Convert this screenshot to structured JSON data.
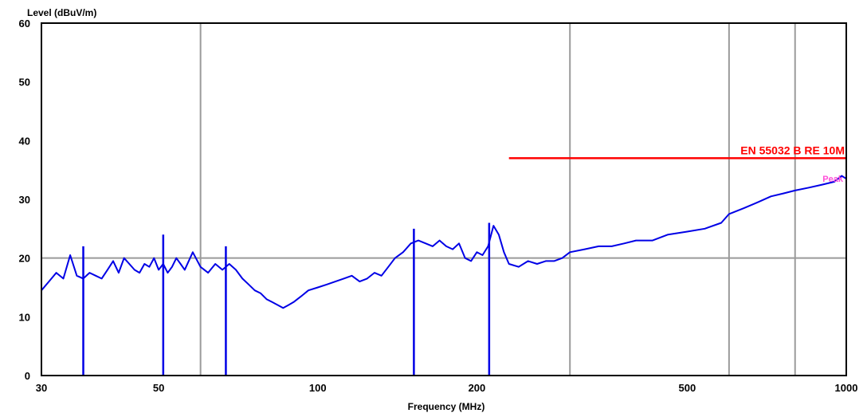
{
  "chart_data": {
    "type": "line",
    "title": "",
    "ylabel": "Level (dBuV/m)",
    "xlabel": "Frequency (MHz)",
    "xscale": "log",
    "xlim": [
      30,
      1000
    ],
    "ylim": [
      0,
      60
    ],
    "x_ticks": [
      30,
      50,
      100,
      200,
      500,
      1000
    ],
    "x_tick_labels": [
      "30",
      "50",
      "100",
      "200",
      "500",
      "1000"
    ],
    "x_gridlines": [
      60,
      300,
      600,
      800
    ],
    "y_ticks": [
      0,
      10,
      20,
      30,
      40,
      50,
      60
    ],
    "y_tick_labels": [
      "0",
      "10",
      "20",
      "30",
      "40",
      "50",
      "60"
    ],
    "y_gridlines": [
      20
    ],
    "grid": true,
    "colors": {
      "trace": "#0000e6",
      "limit": "#ff0000",
      "grid": "#9a9a9a",
      "marker_label": "#ff4fd8"
    },
    "limit_line": {
      "name": "EN 55032 B RE 10M",
      "x": [
        230,
        1000
      ],
      "y": [
        37,
        37
      ]
    },
    "marker_label": "Peak",
    "series": [
      {
        "x": [
          30,
          31,
          32,
          33,
          34,
          35,
          36,
          37,
          38,
          39,
          40,
          41,
          42,
          43,
          44,
          45,
          46,
          47,
          48,
          49,
          50,
          51,
          52,
          53,
          54,
          55,
          56,
          58,
          60,
          62,
          64,
          66,
          68,
          70,
          72,
          74,
          76,
          78,
          80,
          82,
          84,
          86,
          88,
          90,
          93,
          96,
          100,
          104,
          108,
          112,
          116,
          120,
          124,
          128,
          132,
          136,
          140,
          145,
          150,
          155,
          160,
          165,
          170,
          175,
          180,
          185,
          190,
          195,
          200,
          205,
          210,
          215,
          220,
          225,
          230,
          240,
          250,
          260,
          270,
          280,
          290,
          300,
          320,
          340,
          360,
          380,
          400,
          430,
          460,
          500,
          540,
          580,
          600,
          640,
          680,
          720,
          760,
          800,
          850,
          900,
          950,
          980,
          1000
        ],
        "y": [
          14.5,
          16,
          17.5,
          16.5,
          20.5,
          17,
          16.5,
          17.5,
          17,
          16.5,
          18,
          19.5,
          17.5,
          20,
          19,
          18,
          17.5,
          19,
          18.5,
          20,
          18,
          19,
          17.5,
          18.5,
          20,
          19,
          18,
          21,
          18.5,
          17.5,
          19,
          18,
          19,
          18,
          16.5,
          15.5,
          14.5,
          14,
          13,
          12.5,
          12,
          11.5,
          12,
          12.5,
          13.5,
          14.5,
          15,
          15.5,
          16,
          16.5,
          17,
          16,
          16.5,
          17.5,
          17,
          18.5,
          20,
          21,
          22.5,
          23,
          22.5,
          22,
          23,
          22,
          21.5,
          22.5,
          20,
          19.5,
          21,
          20.5,
          22,
          25.5,
          24,
          21,
          19,
          18.5,
          19.5,
          19,
          19.5,
          19.5,
          20,
          21,
          21.5,
          22,
          22,
          22.5,
          23,
          23,
          24,
          24.5,
          25,
          26,
          27.5,
          28.5,
          29.5,
          30.5,
          31,
          31.5,
          32,
          32.5,
          33,
          34,
          33.5
        ]
      }
    ],
    "spikes": [
      {
        "x": 36,
        "y": 22
      },
      {
        "x": 51,
        "y": 24
      },
      {
        "x": 67,
        "y": 22
      },
      {
        "x": 152,
        "y": 25
      },
      {
        "x": 211,
        "y": 26
      }
    ]
  }
}
